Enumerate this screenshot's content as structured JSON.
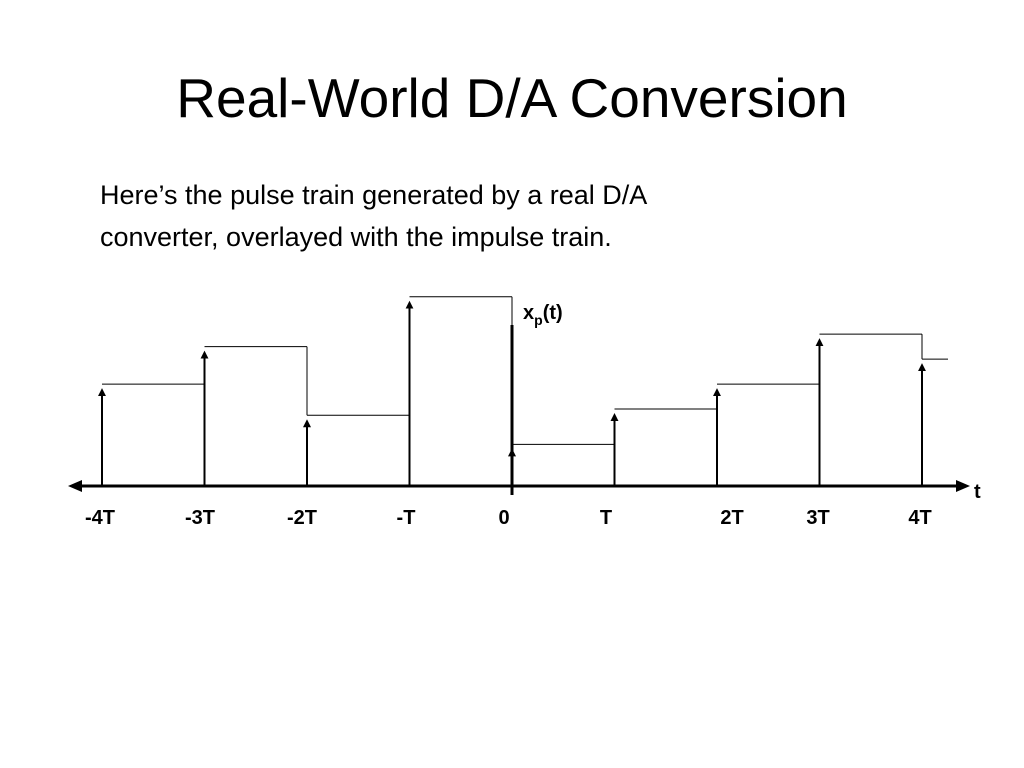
{
  "slide": {
    "title": "Real-World D/A Conversion",
    "body_line1": "Here’s the pulse train generated by a real D/A",
    "body_line2": "converter, overlayed with the impulse train."
  },
  "diagram": {
    "signal_label_main": "x",
    "signal_label_sub": "p",
    "signal_label_arg": "(t)",
    "axis_label": "t",
    "tick_labels": [
      "-4T",
      "-3T",
      "-2T",
      "-T",
      "0",
      "T",
      "2T",
      "3T",
      "4T"
    ],
    "sample_indices": [
      -4,
      -3,
      -2,
      -1,
      0,
      1,
      2,
      3,
      4
    ],
    "sample_values": [
      0.49,
      0.67,
      0.34,
      0.91,
      0.2,
      0.37,
      0.49,
      0.73,
      0.61
    ],
    "line_color": "#000000"
  }
}
